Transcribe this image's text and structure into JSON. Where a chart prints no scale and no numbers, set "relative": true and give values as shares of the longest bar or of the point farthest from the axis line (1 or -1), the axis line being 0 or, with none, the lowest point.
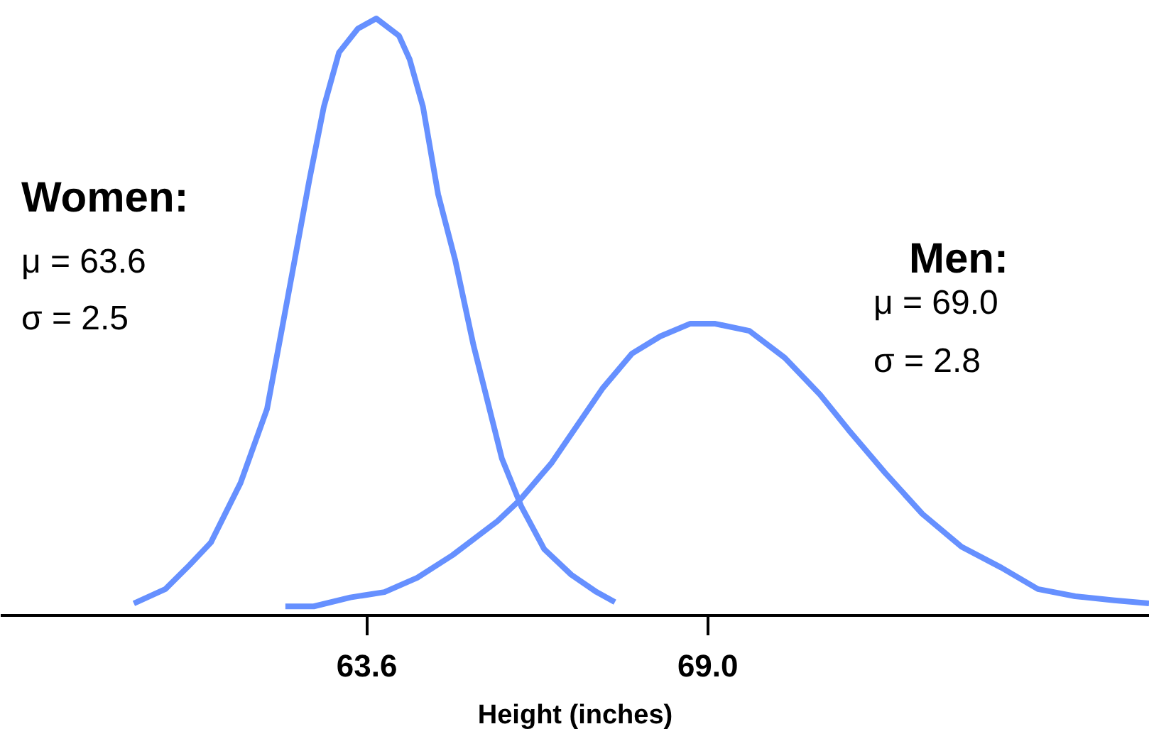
{
  "chart_data": {
    "type": "line",
    "relative": true,
    "xlabel": "Height (inches)",
    "xlim": [
      57.8,
      76.0
    ],
    "xticks": [
      63.6,
      {
        "value": 69.0,
        "label": "69.0"
      }
    ],
    "annotations": [
      "Women:",
      "μ = 63.6",
      "σ =   2.5",
      "Men:",
      "μ = 69.0",
      "σ =   2.8"
    ],
    "series": [
      {
        "color": "#6690ff",
        "x": [
          59.92,
          60.42,
          60.8,
          61.14,
          61.61,
          62.03,
          62.26,
          62.48,
          62.7,
          62.93,
          63.17,
          63.47,
          63.76,
          64.12,
          64.29,
          64.5,
          64.74,
          65.01,
          65.3,
          65.62,
          65.75,
          66.06,
          66.42,
          66.85,
          67.25,
          67.54
        ],
        "values": [
          0.019,
          0.043,
          0.083,
          0.121,
          0.221,
          0.345,
          0.476,
          0.602,
          0.729,
          0.852,
          0.943,
          0.983,
          1.0,
          0.971,
          0.931,
          0.852,
          0.705,
          0.595,
          0.452,
          0.317,
          0.262,
          0.181,
          0.11,
          0.067,
          0.038,
          0.021
        ]
      },
      {
        "color": "#6690ff",
        "x": [
          62.32,
          62.77,
          63.35,
          63.89,
          64.41,
          64.97,
          65.68,
          66.04,
          66.54,
          67.34,
          67.81,
          68.26,
          68.73,
          69.13,
          69.67,
          70.23,
          70.79,
          71.24,
          71.82,
          72.41,
          73.03,
          73.66,
          74.24,
          74.83,
          75.45,
          76.0
        ],
        "values": [
          0.014,
          0.014,
          0.029,
          0.038,
          0.062,
          0.1,
          0.157,
          0.193,
          0.255,
          0.379,
          0.438,
          0.467,
          0.488,
          0.488,
          0.476,
          0.431,
          0.369,
          0.31,
          0.238,
          0.169,
          0.114,
          0.079,
          0.043,
          0.031,
          0.024,
          0.019
        ]
      }
    ]
  }
}
